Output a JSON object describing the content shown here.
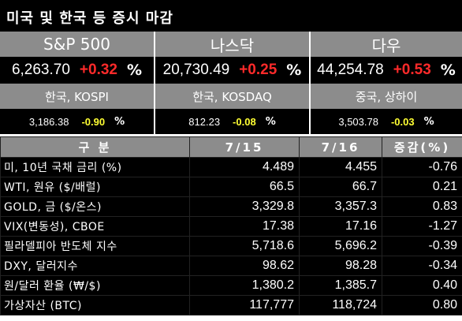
{
  "title": "미국 및 한국 등 증시 마감",
  "major": [
    {
      "label": "S&P 500",
      "value": "6,263.70",
      "change": "+0.32",
      "unit": "%"
    },
    {
      "label": "나스닥",
      "value": "20,730.49",
      "change": "+0.25",
      "unit": "%"
    },
    {
      "label": "다우",
      "value": "44,254.78",
      "change": "+0.53",
      "unit": "%"
    }
  ],
  "asia": [
    {
      "label": "한국, KOSPI",
      "value": "3,186.38",
      "change": "-0.90",
      "unit": "%"
    },
    {
      "label": "한국, KOSDAQ",
      "value": "812.23",
      "change": "-0.08",
      "unit": "%"
    },
    {
      "label": "중국, 상하이",
      "value": "3,503.78",
      "change": "-0.03",
      "unit": "%"
    }
  ],
  "table": {
    "headers": [
      "구 분",
      "7/15",
      "7/16",
      "증감(%)"
    ],
    "rows": [
      {
        "name": "미, 10년 국채 금리 (%)",
        "d1": "4.489",
        "d2": "4.455",
        "chg": "-0.76",
        "neg": true
      },
      {
        "name": "WTI, 원유 ($/배럴)",
        "d1": "66.5",
        "d2": "66.7",
        "chg": "0.21",
        "neg": false
      },
      {
        "name": "GOLD, 금 ($/온스)",
        "d1": "3,329.8",
        "d2": "3,357.3",
        "chg": "0.83",
        "neg": false
      },
      {
        "name": "VIX(변동성), CBOE",
        "d1": "17.38",
        "d2": "17.16",
        "chg": "-1.27",
        "neg": true
      },
      {
        "name": "필라델피아 반도체 지수",
        "d1": "5,718.6",
        "d2": "5,696.2",
        "chg": "-0.39",
        "neg": true
      },
      {
        "name": "DXY, 달러지수",
        "d1": "98.62",
        "d2": "98.28",
        "chg": "-0.34",
        "neg": true
      },
      {
        "name": "원/달러 환율 (₩/$)",
        "d1": "1,380.2",
        "d2": "1,385.7",
        "chg": "0.40",
        "neg": false
      },
      {
        "name": "가상자산 (BTC)",
        "d1": "117,777",
        "d2": "118,724",
        "chg": "0.80",
        "neg": false
      }
    ]
  }
}
